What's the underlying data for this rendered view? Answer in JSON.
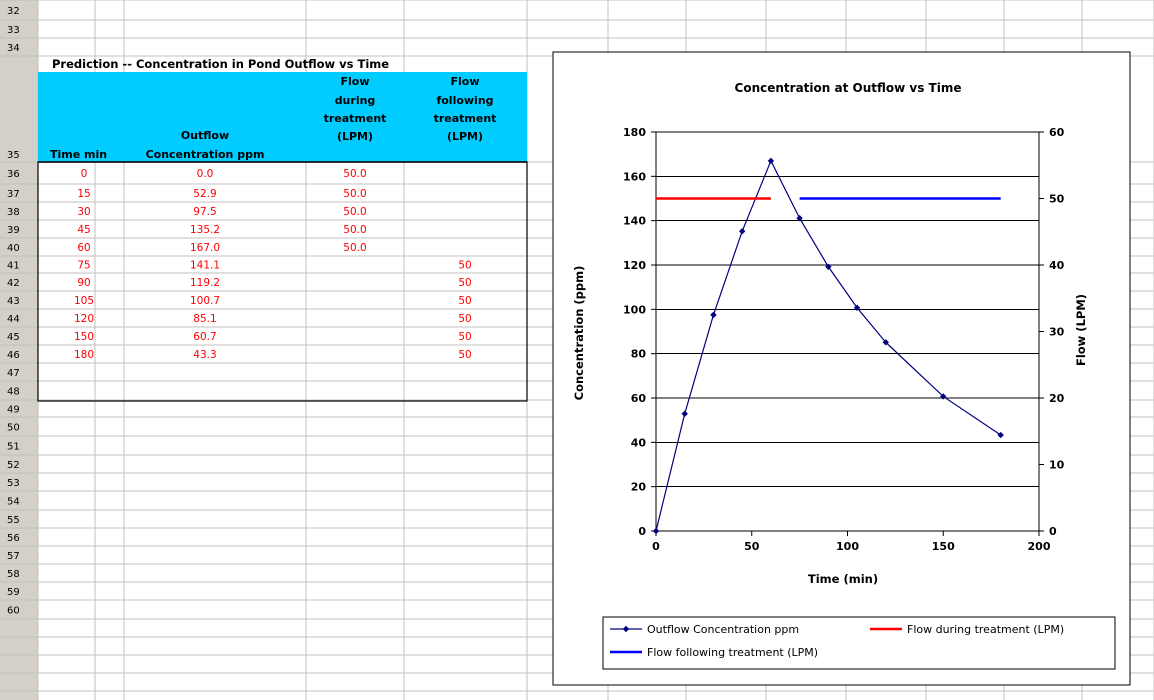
{
  "sheet": {
    "row_numbers": [
      "32",
      "33",
      "34",
      "35",
      "36",
      "37",
      "38",
      "39",
      "40",
      "41",
      "42",
      "43",
      "44",
      "45",
      "46",
      "47",
      "48",
      "49",
      "50",
      "51",
      "52",
      "53",
      "54",
      "55",
      "56",
      "57",
      "58",
      "59",
      "60"
    ],
    "table_title": "Prediction -- Concentration in Pond Outflow vs Time",
    "headers": {
      "time": "Time min",
      "outflow_line1": "Outflow",
      "outflow_line2": "Concentration ppm",
      "during_line1": "Flow",
      "during_line2": "during",
      "during_line3": "treatment",
      "during_line4": "(LPM)",
      "following_line1": "Flow",
      "following_line2": "following",
      "following_line3": "treatment",
      "following_line4": "(LPM)"
    },
    "rows": [
      {
        "time": "0",
        "conc": "0.0",
        "during": "50.0",
        "following": ""
      },
      {
        "time": "15",
        "conc": "52.9",
        "during": "50.0",
        "following": ""
      },
      {
        "time": "30",
        "conc": "97.5",
        "during": "50.0",
        "following": ""
      },
      {
        "time": "45",
        "conc": "135.2",
        "during": "50.0",
        "following": ""
      },
      {
        "time": "60",
        "conc": "167.0",
        "during": "50.0",
        "following": ""
      },
      {
        "time": "75",
        "conc": "141.1",
        "during": "",
        "following": "50"
      },
      {
        "time": "90",
        "conc": "119.2",
        "during": "",
        "following": "50"
      },
      {
        "time": "105",
        "conc": "100.7",
        "during": "",
        "following": "50"
      },
      {
        "time": "120",
        "conc": "85.1",
        "during": "",
        "following": "50"
      },
      {
        "time": "150",
        "conc": "60.7",
        "during": "",
        "following": "50"
      },
      {
        "time": "180",
        "conc": "43.3",
        "during": "",
        "following": "50"
      }
    ],
    "colors": {
      "header_fill": "#00ccff",
      "cell_text": "#ff0000",
      "row_header": "#d4d0c8",
      "grid": "#c0c0c0"
    }
  },
  "chart_data": {
    "type": "line",
    "title": "Concentration at Outflow vs Time",
    "xlabel": "Time (min)",
    "ylabel": "Concentration (ppm)",
    "y2label": "Flow (LPM)",
    "xlim": [
      0,
      200
    ],
    "ylim": [
      0,
      180
    ],
    "y2lim": [
      0,
      60
    ],
    "x_ticks": [
      0,
      50,
      100,
      150,
      200
    ],
    "y_ticks": [
      0,
      20,
      40,
      60,
      80,
      100,
      120,
      140,
      160,
      180
    ],
    "y2_ticks": [
      0,
      10,
      20,
      30,
      40,
      50,
      60
    ],
    "grid": true,
    "legend_position": "bottom",
    "series": [
      {
        "name": "Outflow Concentration ppm",
        "axis": "left",
        "color": "#000080",
        "marker": "diamond",
        "x": [
          0,
          15,
          30,
          45,
          60,
          75,
          90,
          105,
          120,
          150,
          180
        ],
        "y": [
          0.0,
          52.9,
          97.5,
          135.2,
          167.0,
          141.1,
          119.2,
          100.7,
          85.1,
          60.7,
          43.3
        ]
      },
      {
        "name": "Flow during treatment (LPM)",
        "axis": "right",
        "color": "#ff0000",
        "marker": "none",
        "x": [
          0,
          15,
          30,
          45,
          60
        ],
        "y": [
          50,
          50,
          50,
          50,
          50
        ]
      },
      {
        "name": "Flow following treatment (LPM)",
        "axis": "right",
        "color": "#0000ff",
        "marker": "none",
        "x": [
          75,
          90,
          105,
          120,
          150,
          180
        ],
        "y": [
          50,
          50,
          50,
          50,
          50,
          50
        ]
      }
    ]
  }
}
